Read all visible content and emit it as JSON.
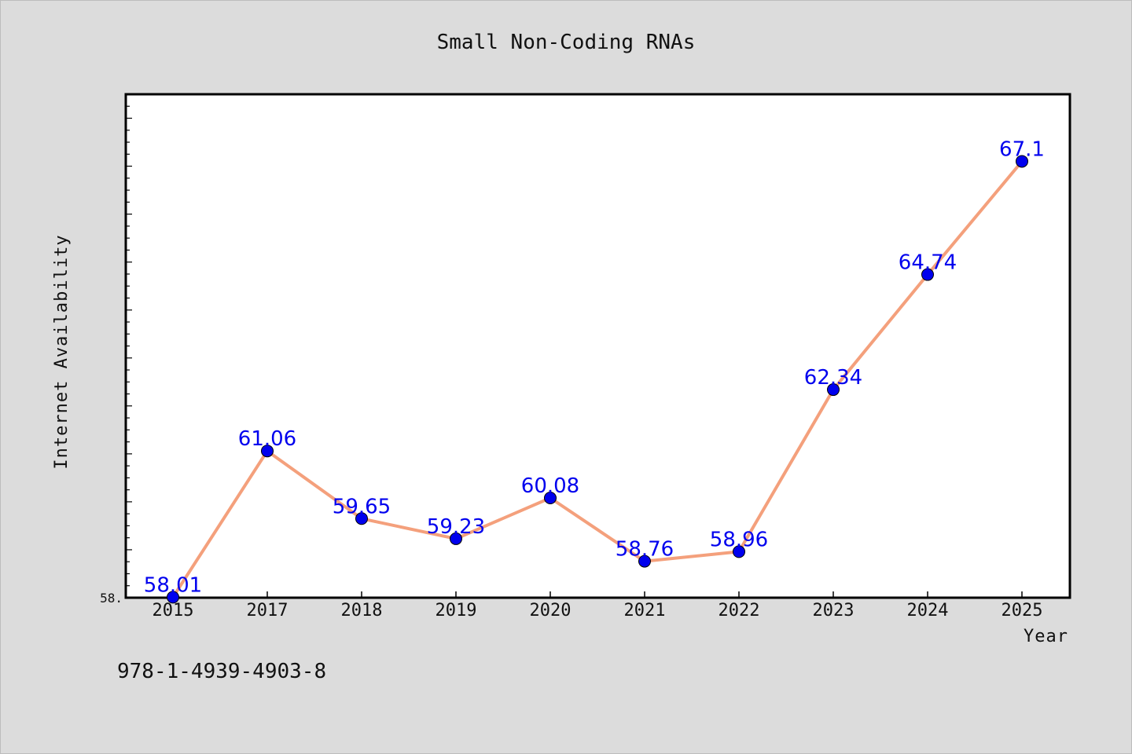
{
  "chart_data": {
    "type": "line",
    "title": "Small Non-Coding RNAs",
    "xlabel": "Year",
    "ylabel": "Internet Availability",
    "categories": [
      "2015",
      "2017",
      "2018",
      "2019",
      "2020",
      "2021",
      "2022",
      "2023",
      "2024",
      "2025"
    ],
    "series": [
      {
        "values": [
          58.01,
          61.06,
          59.65,
          59.23,
          60.08,
          58.76,
          58.96,
          62.34,
          64.74,
          67.1
        ],
        "line_color": "#f4a07c",
        "marker_color": "#0000ee",
        "label_color": "#0000ee"
      }
    ],
    "y_tick_labels": [
      "58."
    ],
    "ylim": [
      58.0,
      68.5
    ],
    "grid": false
  },
  "footer": {
    "isbn": "978-1-4939-4903-8"
  }
}
